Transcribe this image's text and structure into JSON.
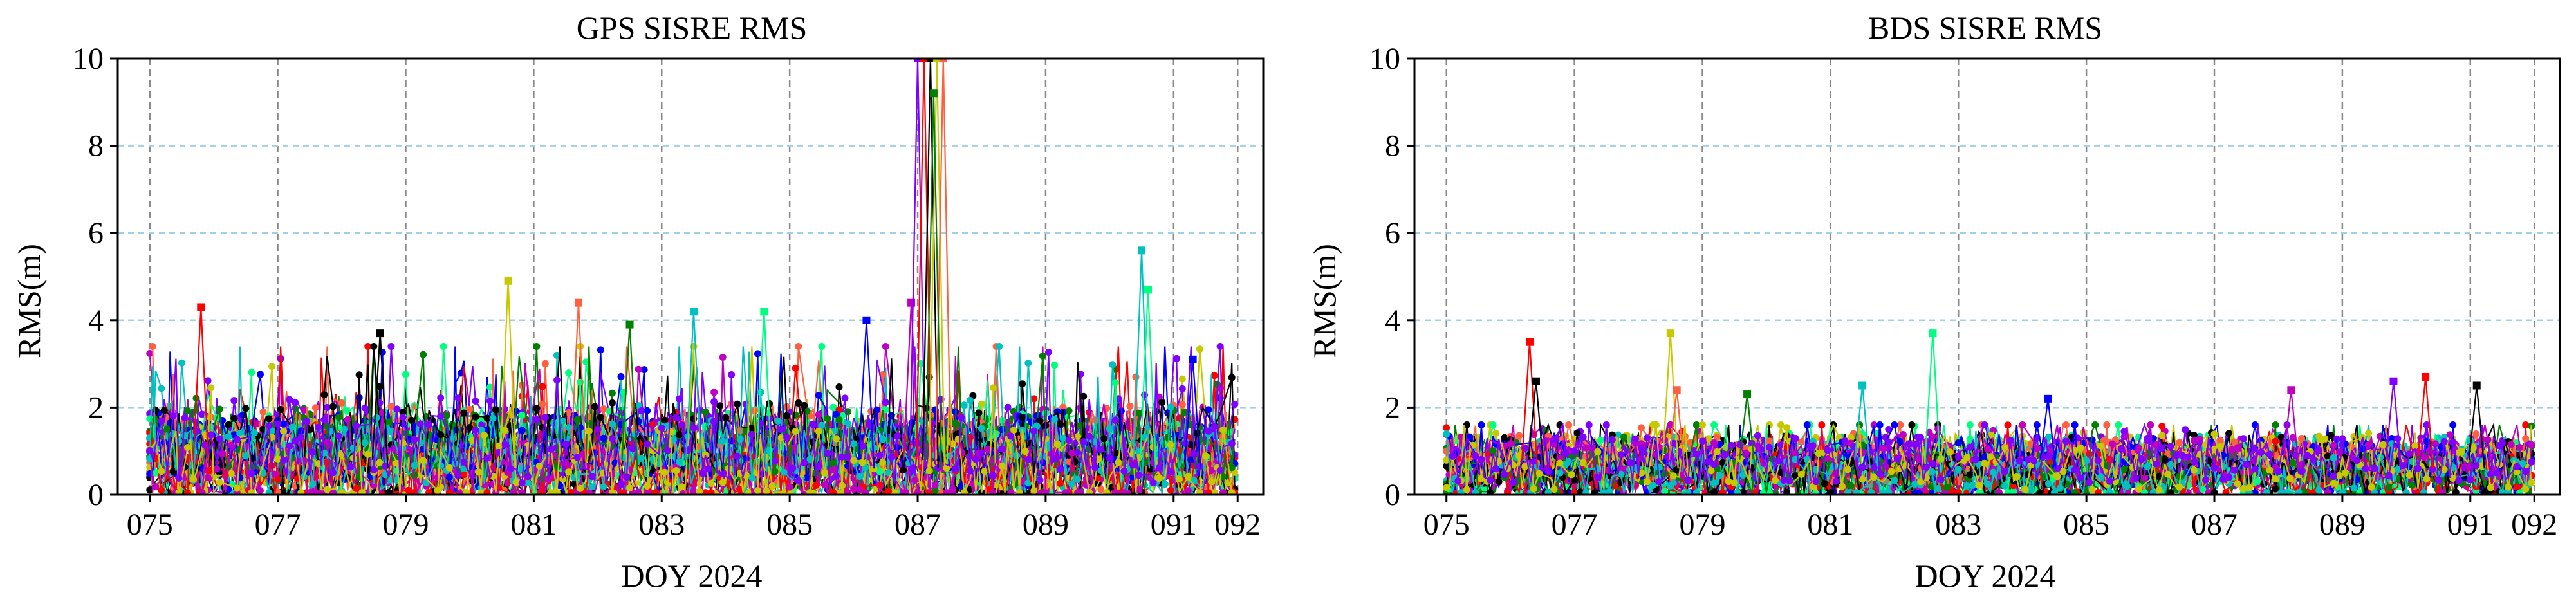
{
  "chart_data": [
    {
      "type": "line",
      "title": "GPS SISRE RMS",
      "xlabel": "DOY 2024",
      "ylabel": "RMS(m)",
      "xlim": [
        74.5,
        92.4
      ],
      "ylim": [
        0,
        10
      ],
      "xticks": [
        75,
        77,
        79,
        81,
        83,
        85,
        87,
        89,
        91,
        92
      ],
      "xtick_labels": [
        "075",
        "077",
        "079",
        "081",
        "083",
        "085",
        "087",
        "089",
        "091",
        "092"
      ],
      "yticks": [
        0,
        2,
        4,
        6,
        8,
        10
      ],
      "ytick_labels": [
        "0",
        "2",
        "4",
        "6",
        "8",
        "10"
      ],
      "grid": {
        "x": "dashed gray",
        "y": "dashed light blue"
      },
      "series_count_note": "",
      "colors": [
        "#ff0000",
        "#0000ff",
        "#008000",
        "#000000",
        "#c000c0",
        "#00c0c0",
        "#c8c800",
        "#8000ff",
        "#00ff80",
        "#ff6040"
      ],
      "trend": {
        "x_start": 75,
        "x_end": 92,
        "typical_rms": 0.9,
        "max_typical": 3.4,
        "spikes": [
          {
            "x": 75.8,
            "y": 4.3
          },
          {
            "x": 78.6,
            "y": 3.7
          },
          {
            "x": 80.6,
            "y": 4.9
          },
          {
            "x": 81.7,
            "y": 4.4
          },
          {
            "x": 82.5,
            "y": 3.9
          },
          {
            "x": 83.5,
            "y": 4.2
          },
          {
            "x": 84.6,
            "y": 4.2
          },
          {
            "x": 86.2,
            "y": 4.0
          },
          {
            "x": 86.9,
            "y": 4.4
          },
          {
            "x": 87.0,
            "y": 10
          },
          {
            "x": 87.1,
            "y": 10
          },
          {
            "x": 87.2,
            "y": 10
          },
          {
            "x": 87.3,
            "y": 10
          },
          {
            "x": 87.4,
            "y": 10
          },
          {
            "x": 87.25,
            "y": 9.2
          },
          {
            "x": 90.5,
            "y": 5.6
          },
          {
            "x": 90.6,
            "y": 4.7
          },
          {
            "x": 91.3,
            "y": 3.1
          }
        ]
      }
    },
    {
      "type": "line",
      "title": "BDS SISRE RMS",
      "xlabel": "DOY 2024",
      "ylabel": "RMS(m)",
      "xlim": [
        74.5,
        92.4
      ],
      "ylim": [
        0,
        10
      ],
      "xticks": [
        75,
        77,
        79,
        81,
        83,
        85,
        87,
        89,
        91,
        92
      ],
      "xtick_labels": [
        "075",
        "077",
        "079",
        "081",
        "083",
        "085",
        "087",
        "089",
        "091",
        "092"
      ],
      "yticks": [
        0,
        2,
        4,
        6,
        8,
        10
      ],
      "ytick_labels": [
        "0",
        "2",
        "4",
        "6",
        "8",
        "10"
      ],
      "grid": {
        "x": "dashed gray",
        "y": "dashed light blue"
      },
      "colors": [
        "#ff0000",
        "#0000ff",
        "#008000",
        "#000000",
        "#c000c0",
        "#00c0c0",
        "#c8c800",
        "#8000ff",
        "#00ff80",
        "#ff6040"
      ],
      "trend": {
        "x_start": 75,
        "x_end": 92,
        "typical_rms": 0.6,
        "max_typical": 1.6,
        "spikes": [
          {
            "x": 76.3,
            "y": 3.5
          },
          {
            "x": 76.4,
            "y": 2.6
          },
          {
            "x": 78.5,
            "y": 3.7
          },
          {
            "x": 78.6,
            "y": 2.4
          },
          {
            "x": 79.7,
            "y": 2.3
          },
          {
            "x": 81.5,
            "y": 2.5
          },
          {
            "x": 82.6,
            "y": 3.7
          },
          {
            "x": 84.4,
            "y": 2.2
          },
          {
            "x": 88.2,
            "y": 2.4
          },
          {
            "x": 89.8,
            "y": 2.6
          },
          {
            "x": 90.3,
            "y": 2.7
          },
          {
            "x": 91.1,
            "y": 2.5
          }
        ]
      }
    }
  ]
}
